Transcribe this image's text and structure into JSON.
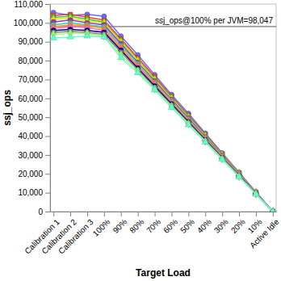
{
  "chart_data": {
    "type": "line",
    "x_label": "Target Load",
    "y_label": "ssj_ops",
    "categories": [
      "Calibration 1",
      "Calibration 2",
      "Calibration 3",
      "100%",
      "90%",
      "80%",
      "70%",
      "60%",
      "50%",
      "40%",
      "30%",
      "20%",
      "10%",
      "Active Idle"
    ],
    "ylim": [
      0,
      110000
    ],
    "yticks": [
      0,
      {
        "value": 10000,
        "label": "10,000"
      },
      {
        "value": 20000,
        "label": "20,000"
      },
      {
        "value": 30000,
        "label": "30,000"
      },
      {
        "value": 40000,
        "label": "40,000"
      },
      {
        "value": 50000,
        "label": "50,000"
      },
      {
        "value": 60000,
        "label": "60,000"
      },
      {
        "value": 70000,
        "label": "70,000"
      },
      {
        "value": 80000,
        "label": "80,000"
      },
      {
        "value": 90000,
        "label": "90,000"
      },
      {
        "value": 100000,
        "label": "100,000"
      },
      {
        "value": 110000,
        "label": "110,000"
      }
    ],
    "grid": false,
    "annotations": [
      {
        "text": "ssj_ops@100% per JVM=98,047",
        "value": 98047
      }
    ],
    "series": [
      {
        "color": "#6a6aff",
        "marker": "circle",
        "values": [
          105500,
          104000,
          104500,
          103500,
          93000,
          83000,
          72500,
          62000,
          52000,
          41500,
          31000,
          20800,
          10400,
          0
        ]
      },
      {
        "color": "#ff3333",
        "marker": "square",
        "values": [
          104000,
          104500,
          103000,
          101500,
          91500,
          81500,
          71500,
          61000,
          51000,
          40800,
          30500,
          20400,
          10200,
          0
        ]
      },
      {
        "color": "#33cc33",
        "marker": "diamond",
        "values": [
          103000,
          103500,
          102000,
          100500,
          90500,
          80500,
          70500,
          60500,
          50500,
          40400,
          30300,
          20200,
          10100,
          0
        ]
      },
      {
        "color": "#e6e600",
        "marker": "triangle",
        "values": [
          102000,
          102500,
          101000,
          100000,
          90000,
          80000,
          70000,
          60000,
          50000,
          40000,
          30000,
          20000,
          10000,
          0
        ]
      },
      {
        "color": "#9933cc",
        "marker": "circle",
        "values": [
          100500,
          101500,
          100000,
          99000,
          89000,
          79000,
          69200,
          59400,
          49500,
          39600,
          29700,
          19800,
          9900,
          0
        ]
      },
      {
        "color": "#33cccc",
        "marker": "square",
        "values": [
          99000,
          100000,
          99000,
          98000,
          88000,
          78500,
          68600,
          58800,
          49000,
          39200,
          29400,
          19600,
          9800,
          0
        ]
      },
      {
        "color": "#ff9900",
        "marker": "diamond",
        "values": [
          98000,
          99000,
          98500,
          97000,
          87000,
          77500,
          67900,
          58200,
          48500,
          38800,
          29100,
          19400,
          9700,
          0
        ]
      },
      {
        "color": "#ff66cc",
        "marker": "triangle",
        "values": [
          97000,
          98000,
          97500,
          96000,
          86000,
          76800,
          67200,
          57600,
          48000,
          38400,
          28800,
          19200,
          9600,
          0
        ]
      },
      {
        "color": "#000080",
        "marker": "circle",
        "values": [
          96000,
          96500,
          96000,
          95000,
          85500,
          76000,
          66500,
          57000,
          47500,
          38000,
          28500,
          19000,
          9500,
          0
        ]
      },
      {
        "color": "#808080",
        "marker": "square",
        "values": [
          95000,
          95500,
          95000,
          94000,
          84500,
          75200,
          65800,
          56400,
          47000,
          37600,
          28200,
          18800,
          9400,
          0
        ]
      },
      {
        "color": "#99ff66",
        "marker": "diamond",
        "values": [
          94000,
          94500,
          94500,
          93000,
          83000,
          74500,
          65000,
          55800,
          46500,
          37200,
          27900,
          18600,
          9300,
          0
        ]
      },
      {
        "color": "#66ffcc",
        "marker": "triangle",
        "values": [
          92000,
          92500,
          93000,
          92500,
          81500,
          73500,
          64500,
          55200,
          46000,
          36800,
          27600,
          18400,
          9200,
          0
        ]
      }
    ]
  }
}
